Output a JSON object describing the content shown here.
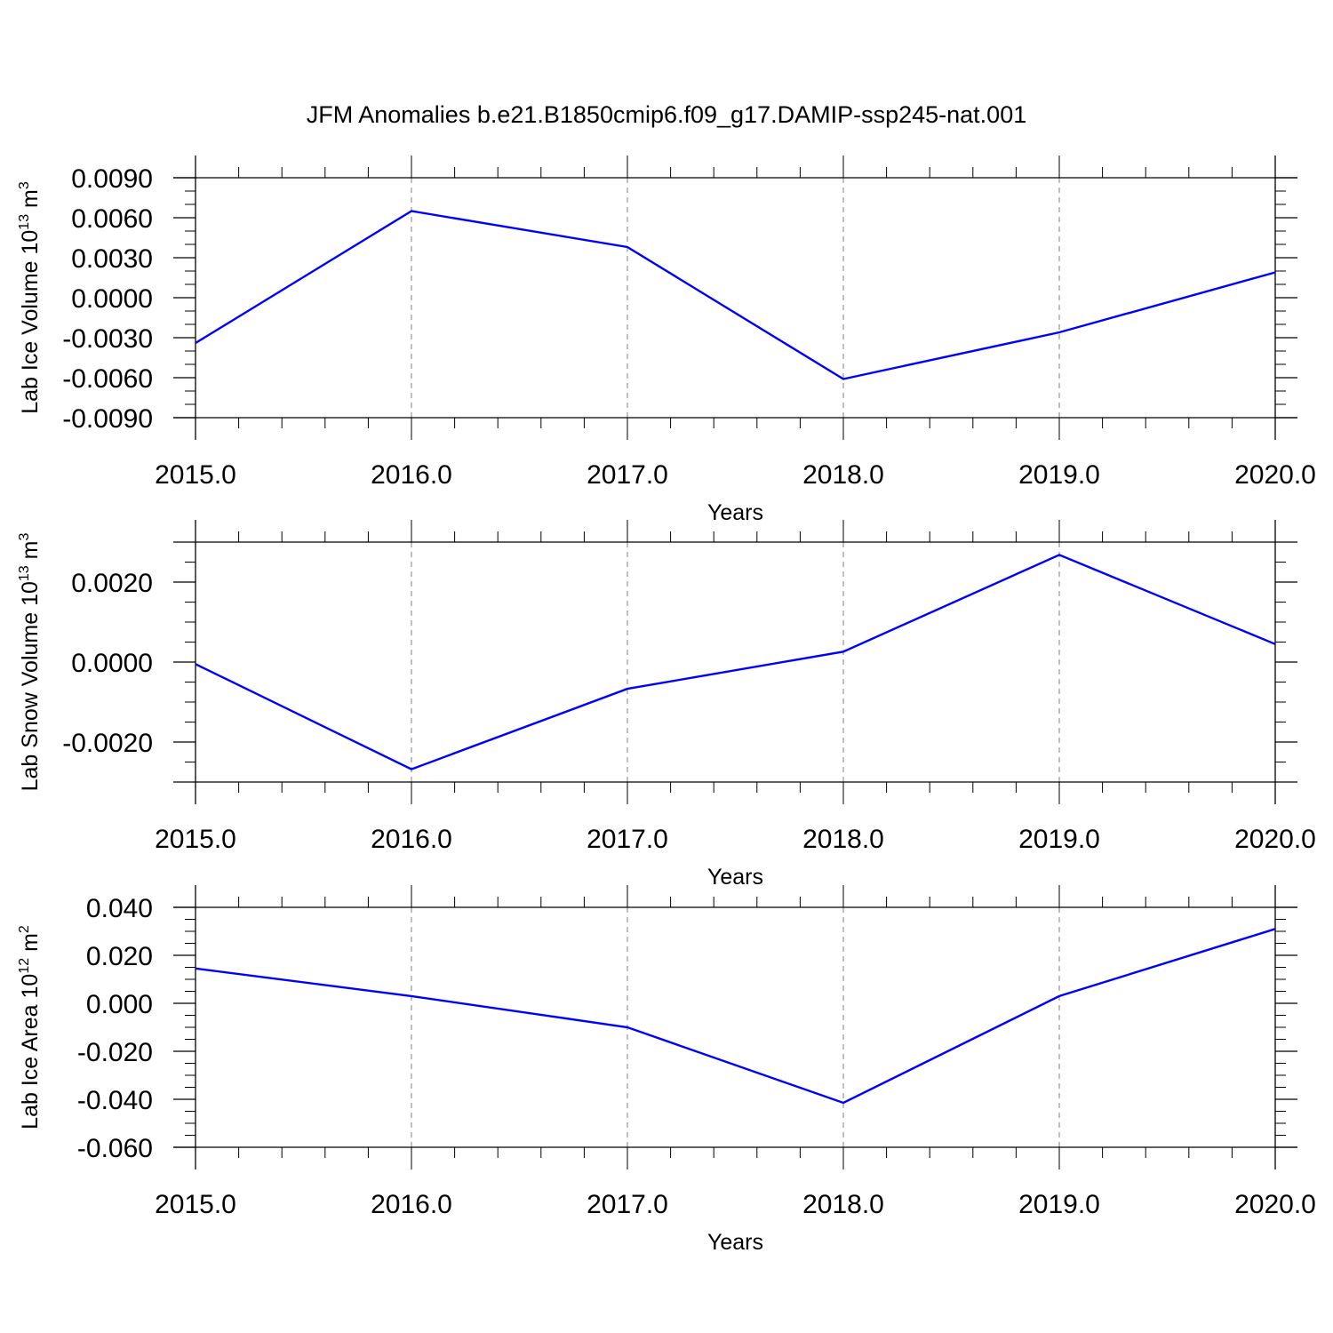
{
  "title": "JFM Anomalies b.e21.B1850cmip6.f09_g17.DAMIP-ssp245-nat.001",
  "colors": {
    "line": "#0000ff",
    "axis": "#000000",
    "grid": "#808080"
  },
  "chart_data": [
    {
      "type": "line",
      "ylabel": "Lab Ice Volume 10",
      "ylabel_exponent": "13",
      "ylabel_unit": "m",
      "ylabel_unit_exponent": "3",
      "xlabel": "Years",
      "x": [
        2015,
        2016,
        2017,
        2018,
        2019,
        2020
      ],
      "xticks": [
        "2015.0",
        "2016.0",
        "2017.0",
        "2018.0",
        "2019.0",
        "2020.0"
      ],
      "xlim": [
        2015,
        2020
      ],
      "ylim": [
        -0.009,
        0.009
      ],
      "yticks": [
        0.009,
        0.006,
        0.003,
        0.0,
        -0.003,
        -0.006,
        -0.009
      ],
      "yticklabels": [
        "0.0090",
        "0.0060",
        "0.0030",
        "0.0000",
        "-0.0030",
        "-0.0060",
        "-0.0090"
      ],
      "yminor": 0.001,
      "series": [
        {
          "values": [
            -0.0034,
            0.0065,
            0.0038,
            -0.0061,
            -0.0026,
            0.0019
          ]
        }
      ]
    },
    {
      "type": "line",
      "ylabel": "Lab Snow Volume 10",
      "ylabel_exponent": "13",
      "ylabel_unit": "m",
      "ylabel_unit_exponent": "3",
      "xlabel": "Years",
      "x": [
        2015,
        2016,
        2017,
        2018,
        2019,
        2020
      ],
      "xticks": [
        "2015.0",
        "2016.0",
        "2017.0",
        "2018.0",
        "2019.0",
        "2020.0"
      ],
      "xlim": [
        2015,
        2020
      ],
      "ylim": [
        -0.003,
        0.003
      ],
      "yticks": [
        0.002,
        0.0,
        -0.002
      ],
      "yticklabels": [
        "0.0020",
        "0.0000",
        "-0.0020"
      ],
      "yminor": 0.0005,
      "series": [
        {
          "values": [
            -5e-05,
            -0.00268,
            -0.00067,
            0.00026,
            0.00268,
            0.00045
          ]
        }
      ]
    },
    {
      "type": "line",
      "ylabel": "Lab Ice Area 10",
      "ylabel_exponent": "12",
      "ylabel_unit": "m",
      "ylabel_unit_exponent": "2",
      "xlabel": "Years",
      "x": [
        2015,
        2016,
        2017,
        2018,
        2019,
        2020
      ],
      "xticks": [
        "2015.0",
        "2016.0",
        "2017.0",
        "2018.0",
        "2019.0",
        "2020.0"
      ],
      "xlim": [
        2015,
        2020
      ],
      "ylim": [
        -0.06,
        0.04
      ],
      "yticks": [
        0.04,
        0.02,
        0.0,
        -0.02,
        -0.04,
        -0.06
      ],
      "yticklabels": [
        "0.040",
        "0.020",
        "0.000",
        "-0.020",
        "-0.040",
        "-0.060"
      ],
      "yminor": 0.005,
      "series": [
        {
          "values": [
            0.0145,
            0.003,
            -0.01,
            -0.0415,
            0.003,
            0.031
          ]
        }
      ]
    }
  ]
}
